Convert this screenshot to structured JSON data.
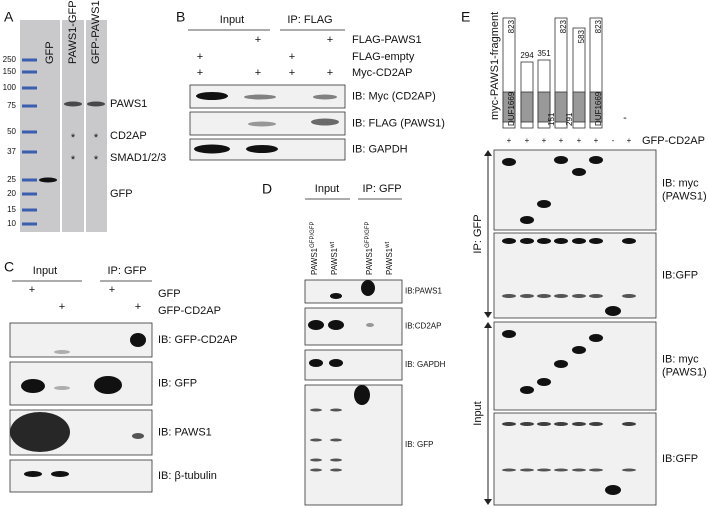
{
  "panels": {
    "a": {
      "letter": "A",
      "lanes": [
        "GFP",
        "PAWS1-GFP",
        "GFP-PAWS1"
      ],
      "markers": [
        250,
        150,
        100,
        75,
        50,
        37,
        25,
        20,
        15,
        10
      ],
      "bands": [
        "PAWS1",
        "CD2AP",
        "SMAD1/2/3",
        "GFP"
      ],
      "asterisks": [
        "*",
        "*",
        "*",
        "*"
      ]
    },
    "b": {
      "letter": "B",
      "groups": [
        "Input",
        "IP: FLAG"
      ],
      "rows": [
        {
          "label": "FLAG-PAWS1",
          "signs": [
            null,
            "+",
            null,
            "+"
          ]
        },
        {
          "label": "FLAG-empty",
          "signs": [
            "+",
            null,
            "+",
            null
          ]
        },
        {
          "label": "Myc-CD2AP",
          "signs": [
            "+",
            "+",
            "+",
            "+"
          ]
        }
      ],
      "blots": [
        "IB: Myc (CD2AP)",
        "IB: FLAG (PAWS1)",
        "IB: GAPDH"
      ]
    },
    "c": {
      "letter": "C",
      "groups": [
        "Input",
        "IP: GFP"
      ],
      "rows": [
        {
          "label": "GFP",
          "signs": [
            "+",
            null,
            "+",
            null
          ]
        },
        {
          "label": "GFP-CD2AP",
          "signs": [
            null,
            "+",
            null,
            "+"
          ]
        }
      ],
      "blots": [
        "IB: GFP-CD2AP",
        "IB: GFP",
        "IB: PAWS1",
        "IB: β-tubulin"
      ]
    },
    "d": {
      "letter": "D",
      "groups": [
        "Input",
        "IP: GFP"
      ],
      "lanes": [
        {
          "name": "PAWS1",
          "sup": "GFP/GFP"
        },
        {
          "name": "PAWS1",
          "sup": "wt"
        },
        {
          "name": "PAWS1",
          "sup": "GFP/GFP"
        },
        {
          "name": "PAWS1",
          "sup": "wt"
        }
      ],
      "blots": [
        "IB:PAWS1",
        "IB:CD2AP",
        "IB: GAPDH",
        "IB: GFP"
      ]
    },
    "e": {
      "letter": "E",
      "fragment_label": "myc-PAWS1-fragment",
      "fragments": [
        {
          "top": 823,
          "bottom": "DUF1669"
        },
        {
          "top": 294
        },
        {
          "top": 351
        },
        {
          "top": 823,
          "bottom": 151
        },
        {
          "top": 583,
          "bottom": 291
        },
        {
          "top": 823,
          "bottom": "DUF1669"
        }
      ],
      "empty": "-",
      "row": {
        "label": "GFP-CD2AP",
        "signs": [
          "+",
          "+",
          "+",
          "+",
          "+",
          "+",
          "-",
          "+"
        ]
      },
      "groups": [
        "IP: GFP",
        "Input"
      ],
      "blots": [
        [
          "IB: myc",
          "(PAWS1)"
        ],
        [
          "IB:GFP"
        ],
        [
          "IB: myc",
          "(PAWS1)"
        ],
        [
          "IB:GFP"
        ]
      ]
    }
  }
}
